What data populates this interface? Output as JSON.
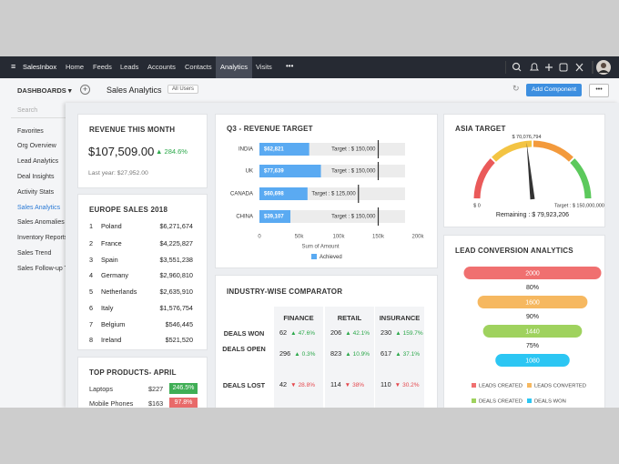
{
  "nav": {
    "brand": "SalesInbox",
    "items": [
      "Home",
      "Feeds",
      "Leads",
      "Accounts",
      "Contacts",
      "Analytics",
      "Visits"
    ],
    "active": 5
  },
  "toolbar": {
    "dashboards": "DASHBOARDS",
    "title": "Sales Analytics",
    "scope": "All Users",
    "button": "Add Component"
  },
  "sidebar": {
    "search": "Search",
    "items": [
      "Favorites",
      "Org Overview",
      "Lead Analytics",
      "Deal Insights",
      "Activity Stats",
      "Sales Analytics",
      "Sales Anomalies",
      "Inventory Reports",
      "Sales Trend",
      "Sales Follow-up T"
    ],
    "active": 5
  },
  "revenue": {
    "title": "REVENUE THIS MONTH",
    "amount": "$107,509.00",
    "change": "284.6%",
    "trend": "up",
    "last_year": "Last year: $27,952.00"
  },
  "europe": {
    "title": "EUROPE SALES 2018",
    "rows": [
      [
        "1",
        "Poland",
        "$6,271,674"
      ],
      [
        "2",
        "France",
        "$4,225,827"
      ],
      [
        "3",
        "Spain",
        "$3,551,238"
      ],
      [
        "4",
        "Germany",
        "$2,960,810"
      ],
      [
        "5",
        "Netherlands",
        "$2,635,910"
      ],
      [
        "6",
        "Italy",
        "$1,576,754"
      ],
      [
        "7",
        "Belgium",
        "$546,445"
      ],
      [
        "8",
        "Ireland",
        "$521,520"
      ]
    ]
  },
  "products": {
    "title": "TOP PRODUCTS- APRIL",
    "rows": [
      {
        "name": "Laptops",
        "price": "$227",
        "change": "246.5%",
        "trend": "up"
      },
      {
        "name": "Mobile Phones",
        "price": "$163",
        "change": "97.8%",
        "trend": "down"
      }
    ]
  },
  "industry": {
    "title": "INDUSTRY-WISE COMPARATOR",
    "columns": [
      "FINANCE",
      "RETAIL",
      "INSURANCE"
    ],
    "rows": [
      {
        "label": "DEALS WON",
        "cells": [
          {
            "value": "62",
            "change": "47.6%",
            "trend": "up"
          },
          {
            "value": "206",
            "change": "42.1%",
            "trend": "up"
          },
          {
            "value": "230",
            "change": "159.7%",
            "trend": "up"
          }
        ]
      },
      {
        "label": "DEALS OPEN",
        "cells": [
          {
            "value": "296",
            "change": "0.3%",
            "trend": "up"
          },
          {
            "value": "823",
            "change": "10.9%",
            "trend": "up"
          },
          {
            "value": "617",
            "change": "37.1%",
            "trend": "up"
          }
        ]
      },
      {
        "label": "DEALS LOST",
        "cells": [
          {
            "value": "42",
            "change": "28.8%",
            "trend": "down"
          },
          {
            "value": "114",
            "change": "38%",
            "trend": "down"
          },
          {
            "value": "110",
            "change": "30.2%",
            "trend": "down"
          }
        ]
      }
    ]
  },
  "chart_data": [
    {
      "type": "bar",
      "orientation": "horizontal",
      "title": "Q3 - REVENUE TARGET",
      "categories": [
        "INDIA",
        "UK",
        "CANADA",
        "CHINA"
      ],
      "values": [
        62821,
        77639,
        60698,
        39107
      ],
      "value_labels": [
        "$62,821",
        "$77,639",
        "$60,698",
        "$39,107"
      ],
      "targets": [
        150000,
        150000,
        125000,
        150000
      ],
      "target_labels": [
        "Target : $ 150,000",
        "Target : $ 150,000",
        "Target : $ 125,000",
        "Target : $ 150,000"
      ],
      "xlim": [
        0,
        200000
      ],
      "xticks": [
        0,
        {
          "value": 50000,
          "label": "50k"
        },
        {
          "value": 100000,
          "label": "100k"
        },
        {
          "value": 150000,
          "label": "150k"
        },
        {
          "value": 200000,
          "label": "200k"
        }
      ],
      "xlabel": "Sum of Amount",
      "legend": "Achieved",
      "color": "#5aaaf2"
    },
    {
      "type": "gauge",
      "title": "ASIA TARGET",
      "value": 70076794,
      "value_label": "$ 70,076,794",
      "min": 0,
      "min_label": "$ 0",
      "max": 150000000,
      "max_label": "Target : $ 150,000,000",
      "remaining_label": "Remaining : $ 79,923,206",
      "colors": [
        "#ea5a5a",
        "#f3c443",
        "#f39a3c",
        "#5cc95c"
      ]
    },
    {
      "type": "funnel",
      "title": "LEAD CONVERSION ANALYTICS",
      "values": [
        2000,
        1600,
        1440,
        1080
      ],
      "rates": [
        "80%",
        "90%",
        "75%"
      ],
      "stages": [
        "LEADS CREATED",
        "LEADS CONVERTED",
        "DEALS CREATED",
        "DEALS WON"
      ],
      "colors": [
        "#f07070",
        "#f6b860",
        "#9fd25e",
        "#2cc6f3"
      ]
    }
  ]
}
